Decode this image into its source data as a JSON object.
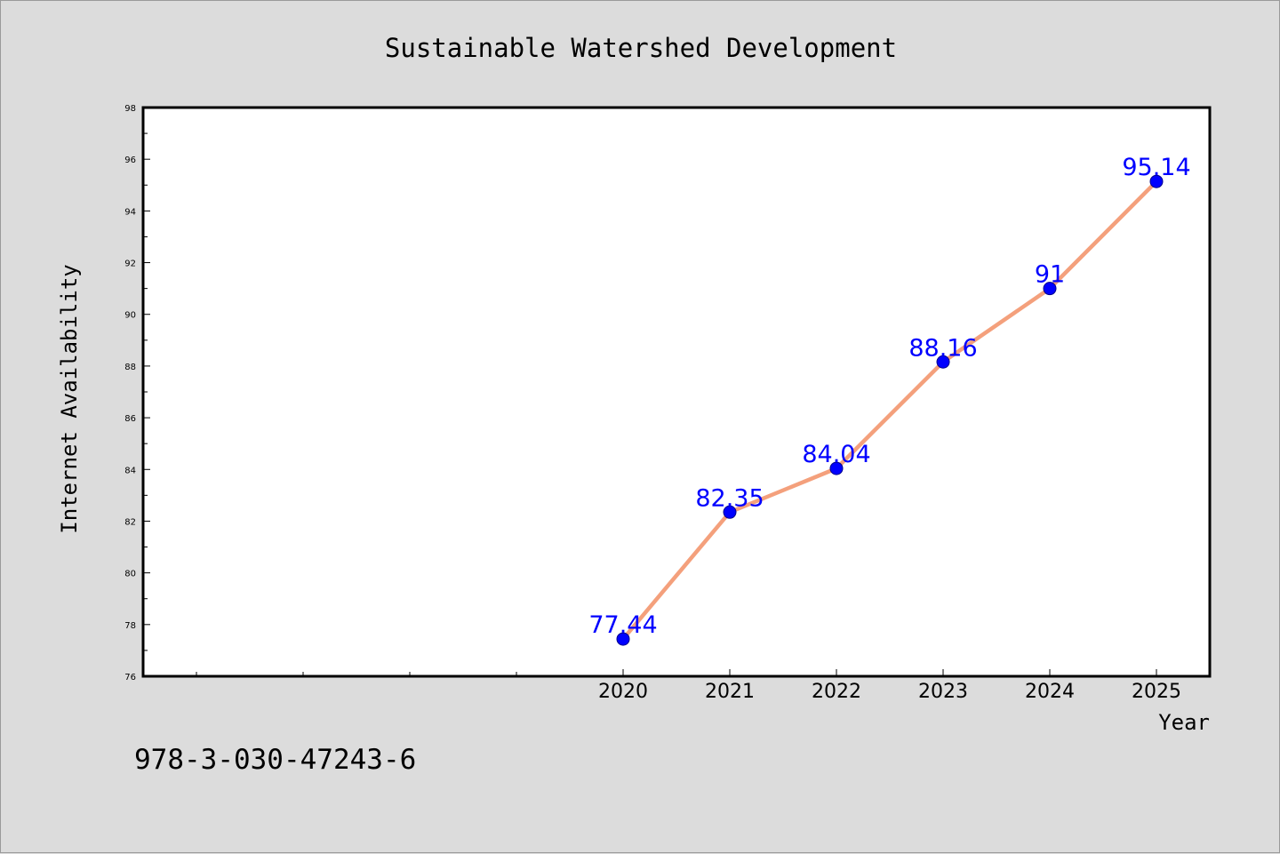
{
  "chart_data": {
    "type": "line",
    "title": "Sustainable Watershed Development",
    "xlabel": "Year",
    "ylabel": "Internet Availability",
    "x": [
      2020,
      2021,
      2022,
      2023,
      2024,
      2025
    ],
    "x_tick_labels": [
      "2020",
      "2021",
      "2022",
      "2023",
      "2024",
      "2025"
    ],
    "xlim": [
      2015.5,
      2025.5
    ],
    "x_minor_ticks": [
      2016,
      2017,
      2018,
      2019
    ],
    "y_ticks": [
      76,
      78,
      80,
      82,
      84,
      86,
      88,
      90,
      92,
      94,
      96,
      98
    ],
    "y_tick_labels": [
      "76",
      "78",
      "80",
      "82",
      "84",
      "86",
      "88",
      "90",
      "92",
      "94",
      "96",
      "98"
    ],
    "ylim": [
      76,
      98
    ],
    "series": [
      {
        "values": [
          77.44,
          82.35,
          84.04,
          88.16,
          91,
          95.14
        ],
        "data_labels": [
          "77.44",
          "82.35",
          "84.04",
          "88.16",
          "91",
          "95.14"
        ]
      }
    ],
    "grid": false,
    "legend": "none",
    "colors": {
      "line": "#f4a07c",
      "marker": "#0000ff",
      "data_label": "#0000ff",
      "plot_background": "#ffffff",
      "figure_background": "#dcdcdc"
    }
  },
  "footer": {
    "isbn": "978-3-030-47243-6"
  }
}
